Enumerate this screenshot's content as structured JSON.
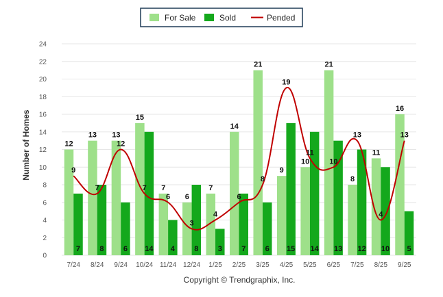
{
  "chart_data": {
    "type": "bar",
    "categories": [
      "7/24",
      "8/24",
      "9/24",
      "10/24",
      "11/24",
      "12/24",
      "1/25",
      "2/25",
      "3/25",
      "4/25",
      "5/25",
      "6/25",
      "7/25",
      "8/25",
      "9/25"
    ],
    "series": [
      {
        "name": "For Sale",
        "kind": "bar",
        "color": "#9ee08a",
        "values": [
          12,
          13,
          13,
          15,
          7,
          6,
          7,
          14,
          21,
          9,
          10,
          21,
          8,
          11,
          16
        ]
      },
      {
        "name": "Sold",
        "kind": "bar",
        "color": "#14a81c",
        "values": [
          7,
          8,
          6,
          14,
          4,
          8,
          3,
          7,
          6,
          15,
          14,
          13,
          12,
          10,
          5
        ]
      },
      {
        "name": "Pended",
        "kind": "line",
        "color": "#c00000",
        "values": [
          9,
          7,
          12,
          7,
          6,
          3,
          4,
          6,
          8,
          19,
          11,
          10,
          13,
          4,
          13
        ]
      }
    ],
    "ylabel": "Number of Homes",
    "ylim": [
      0,
      24
    ],
    "yticks": [
      0,
      2,
      4,
      6,
      8,
      10,
      12,
      14,
      16,
      18,
      20,
      22,
      24
    ],
    "legend_position": "top-center",
    "grid": true
  },
  "footer": {
    "copyright": "Copyright © Trendgraphix, Inc."
  }
}
